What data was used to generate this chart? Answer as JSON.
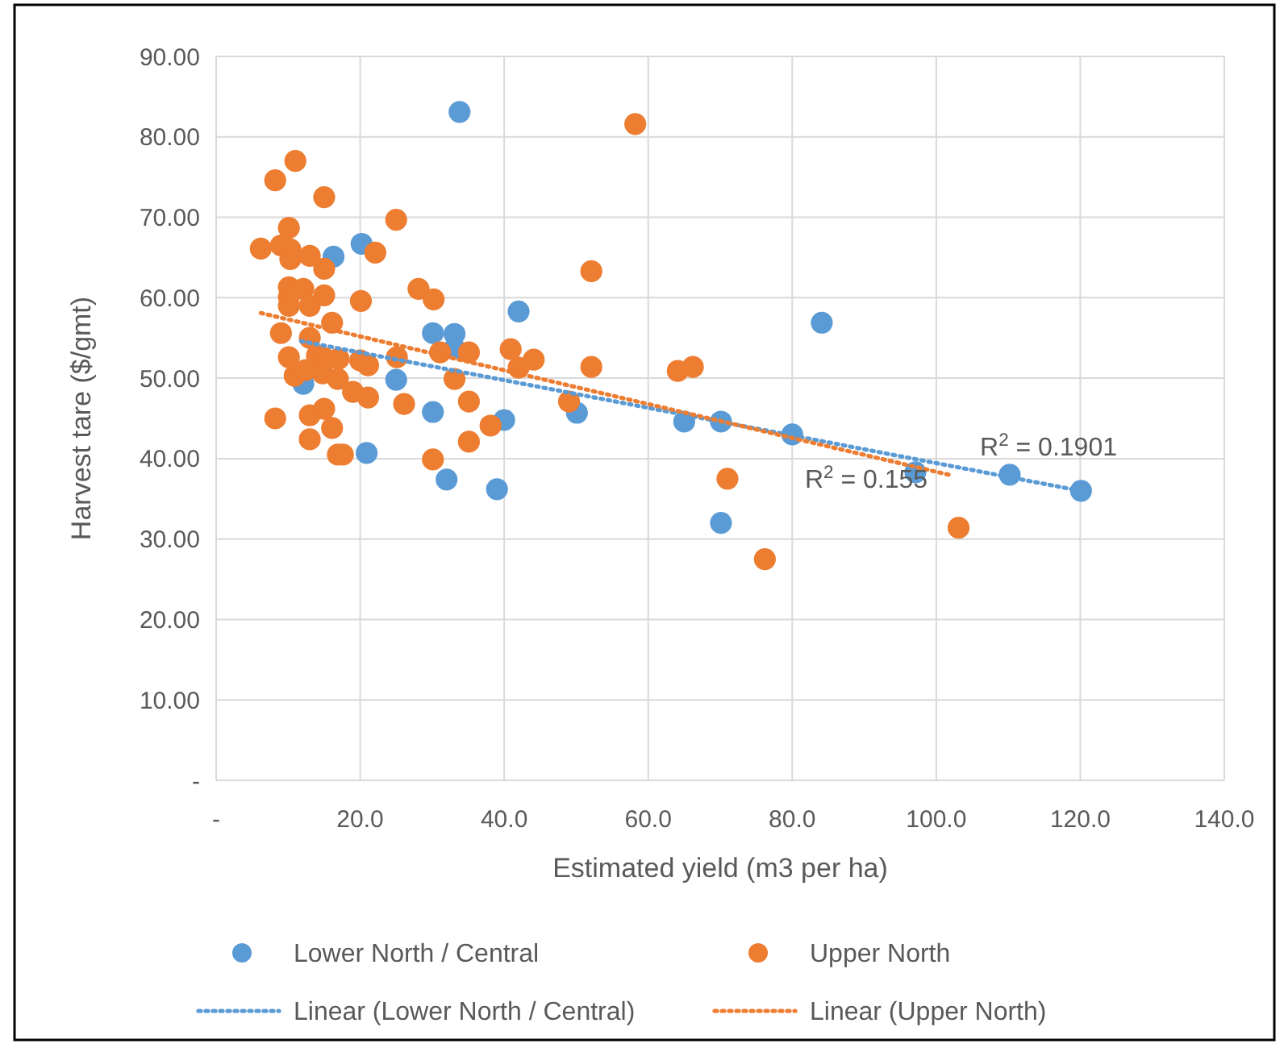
{
  "chart_data": {
    "type": "scatter",
    "xlabel": "Estimated yield (m3 per ha)",
    "ylabel": "Harvest tare ($/gmt)",
    "xlim": [
      0,
      140
    ],
    "ylim": [
      0,
      90
    ],
    "xticks": [
      {
        "value": 0,
        "label": "-"
      },
      {
        "value": 20,
        "label": "20.0"
      },
      {
        "value": 40,
        "label": "40.0"
      },
      {
        "value": 60,
        "label": "60.0"
      },
      {
        "value": 80,
        "label": "80.0"
      },
      {
        "value": 100,
        "label": "100.0"
      },
      {
        "value": 120,
        "label": "120.0"
      },
      {
        "value": 140,
        "label": "140.0"
      }
    ],
    "yticks": [
      {
        "value": 0,
        "label": "-"
      },
      {
        "value": 10,
        "label": "10.00"
      },
      {
        "value": 20,
        "label": "20.00"
      },
      {
        "value": 30,
        "label": "30.00"
      },
      {
        "value": 40,
        "label": "40.00"
      },
      {
        "value": 50,
        "label": "50.00"
      },
      {
        "value": 60,
        "label": "60.00"
      },
      {
        "value": 70,
        "label": "70.00"
      },
      {
        "value": 80,
        "label": "80.00"
      },
      {
        "value": 90,
        "label": "90.00"
      }
    ],
    "grid": true,
    "legend": "bottom",
    "annotations": [
      "R$^{2}$ = 0.1901",
      "R$^{2}$ = 0.155"
    ],
    "series": [
      {
        "name": "Lower North / Central",
        "marker": "circle",
        "color": "#5b9bd5",
        "x": [
          33.8,
          16.3,
          20.2,
          42.0,
          84.1,
          30.1,
          33.1,
          33.1,
          12.1,
          25.0,
          30.1,
          40.0,
          50.1,
          65.0,
          70.1,
          80.0,
          20.9,
          32.0,
          39.0,
          70.1,
          97.1,
          110.2,
          120.1
        ],
        "values": [
          83.1,
          65.1,
          66.7,
          58.3,
          56.9,
          55.6,
          55.5,
          53.7,
          49.3,
          49.8,
          45.8,
          44.8,
          45.7,
          44.6,
          44.6,
          43.0,
          40.7,
          37.4,
          36.2,
          32.0,
          38.3,
          38.0,
          36.0
        ]
      },
      {
        "name": "Upper North",
        "marker": "circle",
        "color": "#ed7d31",
        "x": [
          11.0,
          8.2,
          15.0,
          25.0,
          10.1,
          6.2,
          9.0,
          10.3,
          10.3,
          13.0,
          15.0,
          22.1,
          10.1,
          12.1,
          10.1,
          15.0,
          10.1,
          13.0,
          20.1,
          28.1,
          30.2,
          16.1,
          9.0,
          13.0,
          10.1,
          14.0,
          15.0,
          17.0,
          10.9,
          12.4,
          14.8,
          16.9,
          20.0,
          21.1,
          25.1,
          31.1,
          35.1,
          33.1,
          19.0,
          21.1,
          26.1,
          35.1,
          8.2,
          13.0,
          15.0,
          16.1,
          13.0,
          38.1,
          35.1,
          16.9,
          17.6,
          30.1,
          58.2,
          52.1,
          40.9,
          42.0,
          44.1,
          52.1,
          64.1,
          66.2,
          49.0,
          71.0,
          103.1,
          76.2
        ],
        "values": [
          77.0,
          74.6,
          72.5,
          69.7,
          68.7,
          66.1,
          66.5,
          66.0,
          64.8,
          65.2,
          63.6,
          65.6,
          61.3,
          61.1,
          60.1,
          60.3,
          59.0,
          59.0,
          59.6,
          61.1,
          59.8,
          56.9,
          55.6,
          55.0,
          52.6,
          52.8,
          52.5,
          52.4,
          50.3,
          51.0,
          50.6,
          49.9,
          52.2,
          51.6,
          52.6,
          53.2,
          53.2,
          49.9,
          48.3,
          47.6,
          46.8,
          47.1,
          45.0,
          45.4,
          46.2,
          43.8,
          42.4,
          44.1,
          42.1,
          40.5,
          40.5,
          39.9,
          81.6,
          63.3,
          53.6,
          51.3,
          52.3,
          51.4,
          50.9,
          51.4,
          47.1,
          37.5,
          31.4,
          27.5
        ]
      },
      {
        "name": "Linear (Lower North / Central)",
        "type": "line",
        "color": "#5b9bd5",
        "line_style": "dotted",
        "marker": "none",
        "x": [
          11.8,
          120
        ],
        "values": [
          54.6,
          36.0
        ]
      },
      {
        "name": "Linear (Upper North)",
        "type": "line",
        "color": "#ed7d31",
        "line_style": "dotted",
        "marker": "none",
        "x": [
          6.2,
          102.2
        ],
        "values": [
          58.1,
          37.9
        ]
      }
    ]
  }
}
